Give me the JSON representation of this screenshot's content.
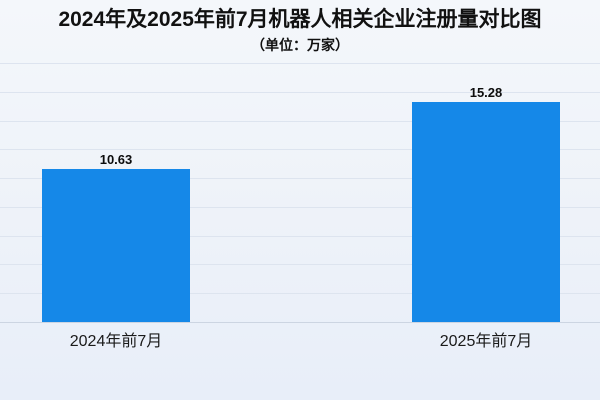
{
  "chart_data": {
    "type": "bar",
    "title": "2024年及2025年前7月机器人相关企业注册量对比图",
    "subtitle": "（单位：万家）",
    "categories": [
      "2024年前7月",
      "2025年前7月"
    ],
    "values": [
      10.63,
      15.28
    ],
    "value_labels": [
      "10.63",
      "15.28"
    ],
    "xlabel": "",
    "ylabel": "",
    "ylim": [
      0,
      18
    ],
    "grid_step": 2,
    "grid": "on",
    "legend": "none",
    "bar_color": "#1588e8",
    "background_top": "#f4f7fb",
    "background_bottom": "#e8eef9",
    "gridline_color": "#dde4ef"
  }
}
